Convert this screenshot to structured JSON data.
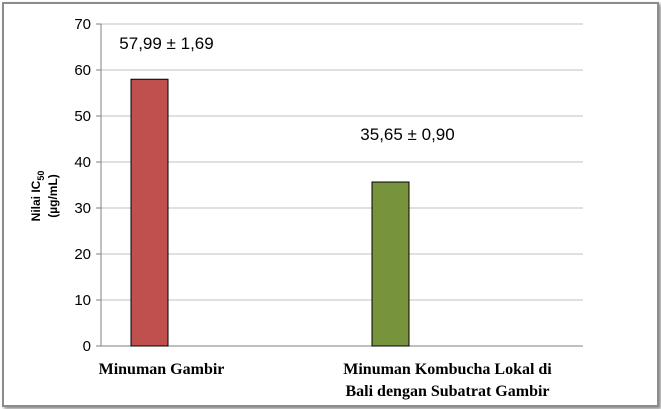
{
  "chart_data": {
    "type": "bar",
    "title": "",
    "xlabel": "",
    "ylabel_line1": "Nilai IC",
    "ylabel_sub": "50",
    "ylabel_line2": "(µg/mL)",
    "ylim": [
      0,
      70
    ],
    "yticks": [
      0,
      10,
      20,
      30,
      40,
      50,
      60,
      70
    ],
    "grid": true,
    "legend": "none",
    "categories": [
      [
        "Minuman Gambir"
      ],
      [
        "Minuman Kombucha Lokal di",
        "Bali dengan Subatrat Gambir"
      ]
    ],
    "values": [
      57.99,
      35.65
    ],
    "data_labels": [
      "57,99 ± 1,69",
      "35,65 ± 0,90"
    ],
    "colors": [
      "#c0504d",
      "#77933c"
    ],
    "stroke_color": "#000000",
    "gridline_color": "#c0c0c0"
  }
}
